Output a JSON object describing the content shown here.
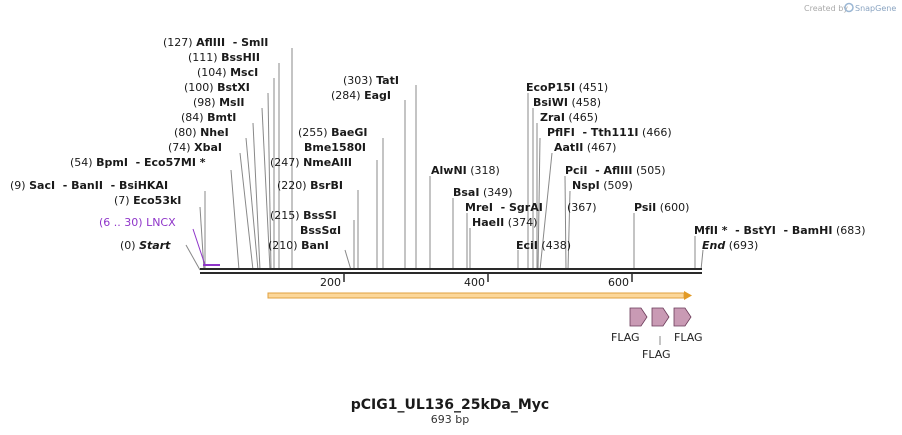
{
  "credit": {
    "text": "Created by",
    "brand": "SnapGene"
  },
  "title": "pCIG1_UL136_25kDa_Myc",
  "subtitle": "693 bp",
  "ticks": [
    "200",
    "400",
    "600"
  ],
  "sites": [
    {
      "num": "(127)",
      "name": "AflIII",
      "suffix": "  - SmlI"
    },
    {
      "num": "(111)",
      "name": "BssHII",
      "suffix": ""
    },
    {
      "num": "(104)",
      "name": "MscI",
      "suffix": ""
    },
    {
      "num": "(100)",
      "name": "BstXI",
      "suffix": ""
    },
    {
      "num": "(98)",
      "name": "MslI",
      "suffix": ""
    },
    {
      "num": "(84)",
      "name": "BmtI",
      "suffix": ""
    },
    {
      "num": "(80)",
      "name": "NheI",
      "suffix": ""
    },
    {
      "num": "(74)",
      "name": "XbaI",
      "suffix": ""
    },
    {
      "num": "(54)",
      "name": "BpmI",
      "suffix": "  - Eco57MI *"
    },
    {
      "num": "(9)",
      "name": "SacI",
      "suffix": "  - BanII  - BsiHKAI"
    },
    {
      "num": "(7)",
      "name": "Eco53kI",
      "suffix": ""
    },
    {
      "num": "(6 .. 30)",
      "name": "LNCX",
      "suffix": ""
    },
    {
      "num": "(0)",
      "name": "Start",
      "suffix": ""
    },
    {
      "num": "(303)",
      "name": "TatI",
      "suffix": ""
    },
    {
      "num": "(284)",
      "name": "EagI",
      "suffix": ""
    },
    {
      "num": "(255)",
      "name": "BaeGI",
      "suffix": ""
    },
    {
      "num": "",
      "name": "Bme1580I",
      "suffix": ""
    },
    {
      "num": "(247)",
      "name": "NmeAIII",
      "suffix": ""
    },
    {
      "num": "(220)",
      "name": "BsrBI",
      "suffix": ""
    },
    {
      "num": "(215)",
      "name": "BssSI",
      "suffix": ""
    },
    {
      "num": "",
      "name": "BssSαI",
      "suffix": ""
    },
    {
      "num": "(210)",
      "name": "BanI",
      "suffix": ""
    },
    {
      "num": "(318)",
      "name": "AlwNI",
      "suffix": ""
    },
    {
      "num": "(349)",
      "name": "BsaI",
      "suffix": ""
    },
    {
      "num": "",
      "name": "MreI",
      "suffix": "  - SgrAI"
    },
    {
      "num": "(374)",
      "name": "HaeII",
      "suffix": ""
    },
    {
      "num": "(438)",
      "name": "EciI",
      "suffix": ""
    },
    {
      "num": "(451)",
      "name": "EcoP15I",
      "suffix": ""
    },
    {
      "num": "(458)",
      "name": "BsiWI",
      "suffix": ""
    },
    {
      "num": "(465)",
      "name": "ZraI",
      "suffix": ""
    },
    {
      "num": "(466)",
      "name": "PflFI",
      "suffix": "  - Tth111I"
    },
    {
      "num": "(467)",
      "name": "AatII",
      "suffix": ""
    },
    {
      "num": "(505)",
      "name": "PciI",
      "suffix": "  - AflIII"
    },
    {
      "num": "(509)",
      "name": "NspI",
      "suffix": ""
    },
    {
      "num": "(367)",
      "name": "",
      "suffix": ""
    },
    {
      "num": "(600)",
      "name": "PsiI",
      "suffix": ""
    },
    {
      "num": "(683)",
      "name": "MfII *",
      "suffix": "  - BstYI  - BamHI"
    },
    {
      "num": "(693)",
      "name": "End",
      "suffix": ""
    }
  ],
  "features": [
    {
      "name": "FLAG"
    },
    {
      "name": "FLAG"
    },
    {
      "name": "FLAG"
    }
  ],
  "colors": {
    "backbone": "#2a2a2a",
    "orf": "#f0a830",
    "flag": "#c99ab4",
    "lncx": "#8f35c9"
  }
}
